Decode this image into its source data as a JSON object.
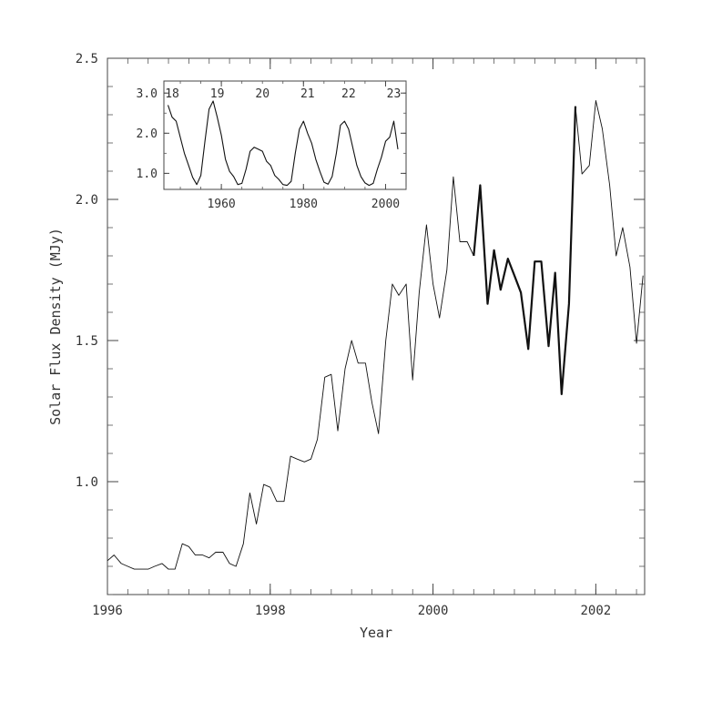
{
  "chart_data": [
    {
      "type": "line",
      "title": "",
      "xlabel": "Year",
      "ylabel": "Solar Flux Density (MJy)",
      "xlim": [
        1996,
        2002.6
      ],
      "ylim": [
        0.6,
        2.5
      ],
      "x_ticks": [
        1996,
        1998,
        2000,
        2002
      ],
      "y_ticks": [
        1.0,
        1.5,
        2.0,
        2.5
      ],
      "x_tick_labels": [
        "1996",
        "1998",
        "2000",
        "2002"
      ],
      "y_tick_labels": [
        "1.0",
        "1.5",
        "2.0",
        "2.5"
      ],
      "grid": false,
      "series": [
        {
          "style": "thin",
          "x": [
            1996.0,
            1996.08,
            1996.17,
            1996.25,
            1996.33,
            1996.42,
            1996.5,
            1996.58,
            1996.67,
            1996.75,
            1996.83,
            1996.92,
            1997.0,
            1997.08,
            1997.17,
            1997.25,
            1997.33,
            1997.42,
            1997.5,
            1997.58,
            1997.67,
            1997.75,
            1997.83,
            1997.92,
            1998.0,
            1998.08,
            1998.17,
            1998.25,
            1998.33,
            1998.42,
            1998.5,
            1998.58,
            1998.67,
            1998.75,
            1998.83,
            1998.92,
            1999.0,
            1999.08,
            1999.17,
            1999.25,
            1999.33,
            1999.42,
            1999.5,
            1999.58,
            1999.67,
            1999.75,
            1999.83,
            1999.92,
            2000.0,
            2000.08,
            2000.17,
            2000.25,
            2000.33,
            2000.42,
            2000.5
          ],
          "y": [
            0.72,
            0.74,
            0.71,
            0.7,
            0.69,
            0.69,
            0.69,
            0.7,
            0.71,
            0.69,
            0.69,
            0.78,
            0.77,
            0.74,
            0.74,
            0.73,
            0.75,
            0.75,
            0.71,
            0.7,
            0.78,
            0.96,
            0.85,
            0.99,
            0.98,
            0.93,
            0.93,
            1.09,
            1.08,
            1.07,
            1.08,
            1.15,
            1.37,
            1.38,
            1.18,
            1.4,
            1.5,
            1.42,
            1.42,
            1.28,
            1.17,
            1.5,
            1.7,
            1.66,
            1.7,
            1.36,
            1.67,
            1.91,
            1.7,
            1.58,
            1.75,
            2.08,
            1.85,
            1.85,
            1.8
          ]
        },
        {
          "style": "thick",
          "x": [
            2000.5,
            2000.58,
            2000.67,
            2000.75,
            2000.83,
            2000.92,
            2001.0,
            2001.08,
            2001.17,
            2001.25,
            2001.33,
            2001.42,
            2001.5,
            2001.58,
            2001.67,
            2001.75
          ],
          "y": [
            1.8,
            2.05,
            1.63,
            1.82,
            1.68,
            1.79,
            1.73,
            1.67,
            1.47,
            1.78,
            1.78,
            1.48,
            1.74,
            1.31,
            1.63,
            2.33
          ]
        },
        {
          "style": "thin",
          "x": [
            2001.75,
            2001.83,
            2001.92,
            2002.0,
            2002.08,
            2002.17,
            2002.25,
            2002.33,
            2002.42,
            2002.5,
            2002.58
          ],
          "y": [
            2.33,
            2.09,
            2.12,
            2.35,
            2.25,
            2.05,
            1.8,
            1.9,
            1.76,
            1.49,
            1.73
          ]
        }
      ]
    },
    {
      "type": "line",
      "title": "",
      "xlim": [
        1946,
        2005
      ],
      "ylim": [
        0.6,
        3.3
      ],
      "x_ticks": [
        1960,
        1980,
        2000
      ],
      "y_ticks": [
        1.0,
        2.0,
        3.0
      ],
      "x_tick_labels": [
        "1960",
        "1980",
        "2000"
      ],
      "y_tick_labels": [
        "1.0",
        "2.0",
        "3.0"
      ],
      "annotations": [
        "18",
        "19",
        "20",
        "21",
        "22",
        "23"
      ],
      "annotation_years": [
        1948,
        1959,
        1970,
        1981,
        1991,
        2002
      ],
      "series": [
        {
          "x": [
            1947,
            1948,
            1949,
            1950,
            1951,
            1952,
            1953,
            1954,
            1955,
            1956,
            1957,
            1958,
            1959,
            1960,
            1961,
            1962,
            1963,
            1964,
            1965,
            1966,
            1967,
            1968,
            1969,
            1970,
            1971,
            1972,
            1973,
            1974,
            1975,
            1976,
            1977,
            1978,
            1979,
            1980,
            1981,
            1982,
            1983,
            1984,
            1985,
            1986,
            1987,
            1988,
            1989,
            1990,
            1991,
            1992,
            1993,
            1994,
            1995,
            1996,
            1997,
            1998,
            1999,
            2000,
            2001,
            2002,
            2003
          ],
          "y": [
            2.7,
            2.4,
            2.3,
            1.9,
            1.5,
            1.2,
            0.9,
            0.72,
            0.95,
            1.8,
            2.6,
            2.8,
            2.4,
            1.95,
            1.35,
            1.05,
            0.92,
            0.72,
            0.75,
            1.1,
            1.55,
            1.65,
            1.6,
            1.55,
            1.3,
            1.2,
            0.95,
            0.85,
            0.72,
            0.7,
            0.8,
            1.5,
            2.1,
            2.3,
            2.0,
            1.75,
            1.35,
            1.05,
            0.78,
            0.73,
            0.92,
            1.5,
            2.2,
            2.3,
            2.1,
            1.65,
            1.2,
            0.92,
            0.76,
            0.7,
            0.75,
            1.1,
            1.4,
            1.8,
            1.9,
            2.3,
            1.6
          ]
        }
      ]
    }
  ]
}
